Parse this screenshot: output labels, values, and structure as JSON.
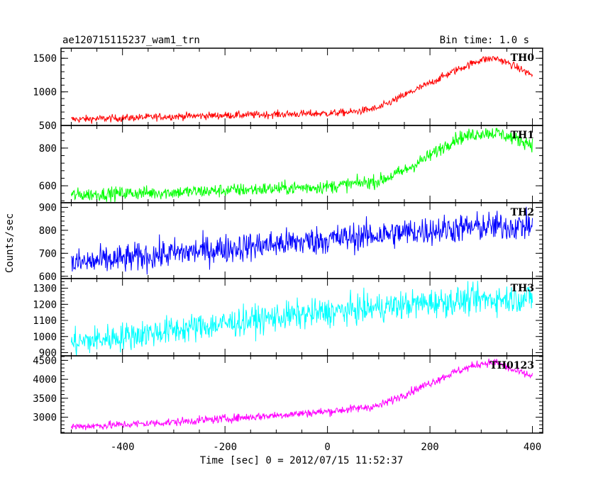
{
  "chart_data": {
    "type": "line",
    "title": "ae120715115237_wam1_trn",
    "bin_time": "Bin time: 1.0 s",
    "xlabel": "Time [sec] 0 = 2012/07/15 11:52:37",
    "ylabel": "Counts/sec",
    "xlim": [
      -520,
      420
    ],
    "x_ticks": [
      -400,
      -200,
      0,
      200,
      400
    ],
    "grid": false,
    "panels": [
      {
        "name": "TH0",
        "color": "#ff0000",
        "ylim": [
          500,
          1650
        ],
        "y_ticks": [
          500,
          1000,
          1500
        ],
        "noise": 28,
        "x": [
          -500,
          -400,
          -300,
          -200,
          -100,
          0,
          50,
          100,
          150,
          200,
          250,
          300,
          330,
          360,
          400
        ],
        "y": [
          590,
          610,
          635,
          650,
          665,
          680,
          700,
          760,
          950,
          1130,
          1320,
          1480,
          1500,
          1400,
          1250
        ]
      },
      {
        "name": "TH1",
        "color": "#00ff00",
        "ylim": [
          510,
          920
        ],
        "y_ticks": [
          600,
          800
        ],
        "noise": 18,
        "x": [
          -500,
          -400,
          -300,
          -200,
          -100,
          0,
          100,
          150,
          200,
          250,
          300,
          330,
          360,
          400
        ],
        "y": [
          550,
          560,
          565,
          575,
          585,
          595,
          625,
          680,
          760,
          850,
          880,
          880,
          855,
          820
        ]
      },
      {
        "name": "TH2",
        "color": "#0000ff",
        "ylim": [
          590,
          920
        ],
        "y_ticks": [
          600,
          700,
          800,
          900
        ],
        "noise": 32,
        "x": [
          -500,
          -400,
          -300,
          -200,
          -100,
          0,
          100,
          200,
          300,
          400
        ],
        "y": [
          655,
          675,
          700,
          720,
          740,
          760,
          780,
          800,
          815,
          820
        ]
      },
      {
        "name": "TH3",
        "color": "#00ffff",
        "ylim": [
          880,
          1360
        ],
        "y_ticks": [
          900,
          1000,
          1100,
          1200,
          1300
        ],
        "noise": 45,
        "x": [
          -500,
          -400,
          -300,
          -200,
          -100,
          0,
          100,
          200,
          300,
          400
        ],
        "y": [
          960,
          1000,
          1040,
          1080,
          1120,
          1150,
          1180,
          1210,
          1230,
          1240
        ]
      },
      {
        "name": "TH0123",
        "color": "#ff00ff",
        "ylim": [
          2580,
          4620
        ],
        "y_ticks": [
          3000,
          3500,
          4000,
          4500
        ],
        "noise": 55,
        "x": [
          -500,
          -400,
          -300,
          -200,
          -100,
          0,
          50,
          100,
          150,
          200,
          250,
          300,
          330,
          360,
          400
        ],
        "y": [
          2750,
          2800,
          2870,
          2960,
          3050,
          3150,
          3220,
          3300,
          3600,
          3900,
          4200,
          4420,
          4450,
          4250,
          4080
        ]
      }
    ]
  }
}
